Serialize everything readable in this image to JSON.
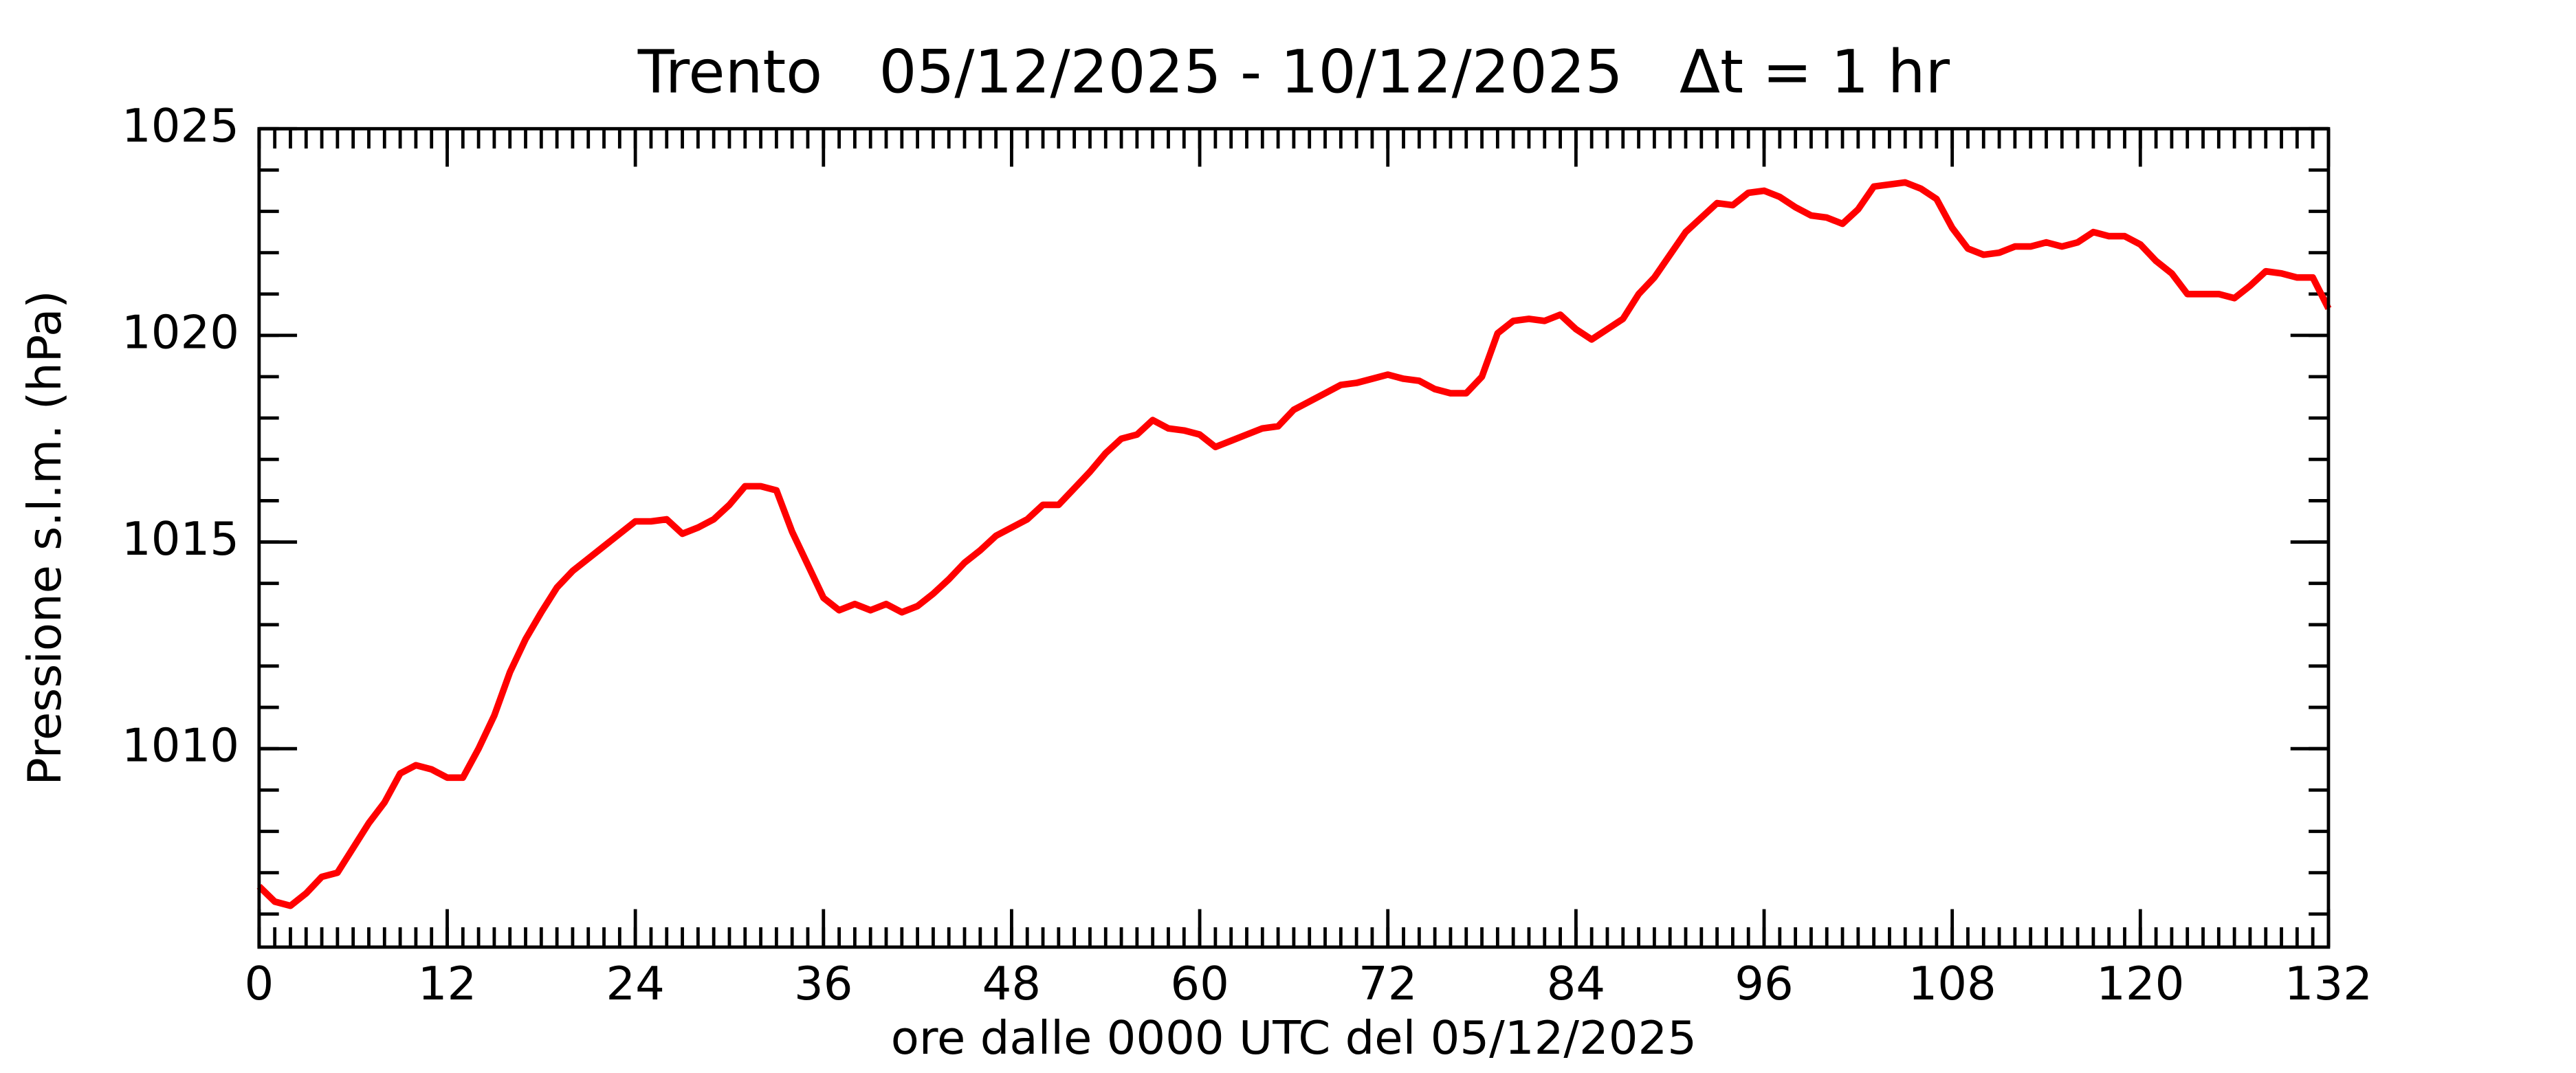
{
  "chart_data": {
    "type": "line",
    "title": "Trento   05/12/2025 - 10/12/2025   Δt = 1 hr",
    "xlabel": "ore dalle 0000 UTC del 05/12/2025",
    "ylabel": "Pressione s.l.m. (hPa)",
    "color": "#ff0000",
    "x": [
      0,
      1,
      2,
      3,
      4,
      5,
      6,
      7,
      8,
      9,
      10,
      11,
      12,
      13,
      14,
      15,
      16,
      17,
      18,
      19,
      20,
      21,
      22,
      23,
      24,
      25,
      26,
      27,
      28,
      29,
      30,
      31,
      32,
      33,
      34,
      35,
      36,
      37,
      38,
      39,
      40,
      41,
      42,
      43,
      44,
      45,
      46,
      47,
      48,
      49,
      50,
      51,
      52,
      53,
      54,
      55,
      56,
      57,
      58,
      59,
      60,
      61,
      62,
      63,
      64,
      65,
      66,
      67,
      68,
      69,
      70,
      71,
      72,
      73,
      74,
      75,
      76,
      77,
      78,
      79,
      80,
      81,
      82,
      83,
      84,
      85,
      86,
      87,
      88,
      89,
      90,
      91,
      92,
      93,
      94,
      95,
      96,
      97,
      98,
      99,
      100,
      101,
      102,
      103,
      104,
      105,
      106,
      107,
      108,
      109,
      110,
      111,
      112,
      113,
      114,
      115,
      116,
      117,
      118,
      119,
      120,
      121,
      122,
      123,
      124,
      125,
      126,
      127,
      128,
      129,
      130,
      131,
      132
    ],
    "values": [
      1006.67,
      1006.3,
      1006.2,
      1006.5,
      1006.9,
      1007.0,
      1007.6,
      1008.2,
      1008.7,
      1009.4,
      1009.6,
      1009.5,
      1009.3,
      1009.3,
      1010.0,
      1010.8,
      1011.85,
      1012.65,
      1013.3,
      1013.9,
      1014.3,
      1014.6,
      1014.9,
      1015.2,
      1015.5,
      1015.5,
      1015.55,
      1015.2,
      1015.35,
      1015.55,
      1015.9,
      1016.35,
      1016.35,
      1016.25,
      1015.25,
      1014.45,
      1013.65,
      1013.35,
      1013.5,
      1013.35,
      1013.5,
      1013.3,
      1013.45,
      1013.75,
      1014.1,
      1014.5,
      1014.8,
      1015.15,
      1015.35,
      1015.55,
      1015.9,
      1015.9,
      1016.3,
      1016.7,
      1017.15,
      1017.5,
      1017.6,
      1017.95,
      1017.75,
      1017.7,
      1017.6,
      1017.3,
      1017.45,
      1017.6,
      1017.75,
      1017.8,
      1018.2,
      1018.4,
      1018.6,
      1018.8,
      1018.85,
      1018.95,
      1019.05,
      1018.95,
      1018.9,
      1018.7,
      1018.6,
      1018.6,
      1019.0,
      1020.05,
      1020.35,
      1020.4,
      1020.35,
      1020.5,
      1020.15,
      1019.9,
      1020.15,
      1020.4,
      1021.0,
      1021.4,
      1021.95,
      1022.5,
      1022.85,
      1023.2,
      1023.15,
      1023.45,
      1023.5,
      1023.35,
      1023.1,
      1022.9,
      1022.85,
      1022.7,
      1023.05,
      1023.6,
      1023.65,
      1023.7,
      1023.55,
      1023.3,
      1022.6,
      1022.1,
      1021.95,
      1022.0,
      1022.15,
      1022.15,
      1022.25,
      1022.15,
      1022.25,
      1022.5,
      1022.4,
      1022.4,
      1022.2,
      1021.8,
      1021.5,
      1021.0,
      1021.0,
      1021.0,
      1020.9,
      1021.2,
      1021.55,
      1021.5,
      1021.4,
      1021.4,
      1020.65
    ],
    "xlim": [
      0,
      132
    ],
    "xticks": [
      0,
      12,
      24,
      36,
      48,
      60,
      72,
      84,
      96,
      108,
      120,
      132
    ],
    "ylim": [
      1005.2,
      1025
    ],
    "yticks": [
      1010,
      1015,
      1020,
      1025
    ],
    "minor_tick_step": {
      "x": 1,
      "y": 1
    }
  }
}
